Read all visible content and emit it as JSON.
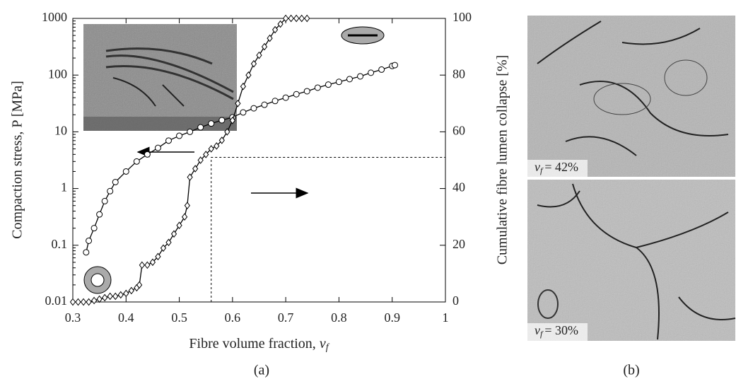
{
  "chart_data": {
    "type": "line",
    "y_label": "Compaction stress, P [MPa]",
    "y2_label": "Cumulative fibre lumen collapse [%]",
    "x_label": {
      "text": "Fibre volume fraction,",
      "var": "v",
      "sub": "f"
    },
    "panel_a": "(a)",
    "panel_b": "(b)",
    "xlim": [
      0.3,
      1
    ],
    "xticks": [
      0.3,
      0.4,
      0.5,
      0.6,
      0.7,
      0.8,
      0.9,
      1
    ],
    "ylim": [
      0.01,
      1000
    ],
    "yticks": [
      0.01,
      0.1,
      1,
      10,
      100,
      1000
    ],
    "ylog": true,
    "y2lim": [
      0,
      100
    ],
    "y2ticks": [
      0,
      20,
      40,
      60,
      80,
      100
    ],
    "guide": {
      "x": 0.56,
      "y2": 51
    },
    "series": [
      {
        "color": "#000000",
        "marker": "circle",
        "axis": "y",
        "x": [
          0.325,
          0.33,
          0.34,
          0.35,
          0.36,
          0.37,
          0.38,
          0.4,
          0.42,
          0.44,
          0.46,
          0.48,
          0.5,
          0.52,
          0.54,
          0.56,
          0.58,
          0.6,
          0.62,
          0.64,
          0.66,
          0.68,
          0.7,
          0.72,
          0.74,
          0.76,
          0.78,
          0.8,
          0.82,
          0.84,
          0.86,
          0.88,
          0.9,
          0.905
        ],
        "values": [
          0.075,
          0.12,
          0.2,
          0.35,
          0.6,
          0.9,
          1.3,
          2.0,
          3.0,
          4.0,
          5.2,
          7,
          8.5,
          10,
          12,
          14,
          16,
          18,
          22,
          26,
          30,
          35,
          40,
          46,
          52,
          60,
          68,
          76,
          85,
          95,
          110,
          125,
          145,
          150
        ]
      },
      {
        "color": "#000000",
        "marker": "diamond",
        "axis": "y2",
        "x": [
          0.3,
          0.31,
          0.32,
          0.33,
          0.34,
          0.35,
          0.36,
          0.37,
          0.38,
          0.39,
          0.4,
          0.41,
          0.42,
          0.425,
          0.43,
          0.44,
          0.45,
          0.46,
          0.47,
          0.48,
          0.49,
          0.5,
          0.51,
          0.515,
          0.52,
          0.53,
          0.54,
          0.55,
          0.56,
          0.57,
          0.58,
          0.59,
          0.6,
          0.61,
          0.62,
          0.63,
          0.64,
          0.65,
          0.66,
          0.67,
          0.68,
          0.69,
          0.7,
          0.71,
          0.72,
          0.73,
          0.74
        ],
        "values": [
          0,
          0,
          0,
          0,
          0.5,
          1,
          1.5,
          2,
          2,
          2.5,
          3,
          4,
          5,
          6,
          13,
          13,
          14,
          16,
          19,
          21,
          24,
          27,
          30,
          34,
          44,
          47,
          50,
          52,
          54,
          55,
          57,
          60,
          64,
          70,
          76,
          80,
          84,
          87,
          90,
          93,
          96,
          98,
          100,
          100,
          100,
          100,
          100
        ]
      }
    ],
    "images": [
      {
        "var": "v",
        "sub": "f",
        "text": "= 42%"
      },
      {
        "var": "v",
        "sub": "f",
        "text": "= 30%"
      }
    ]
  }
}
